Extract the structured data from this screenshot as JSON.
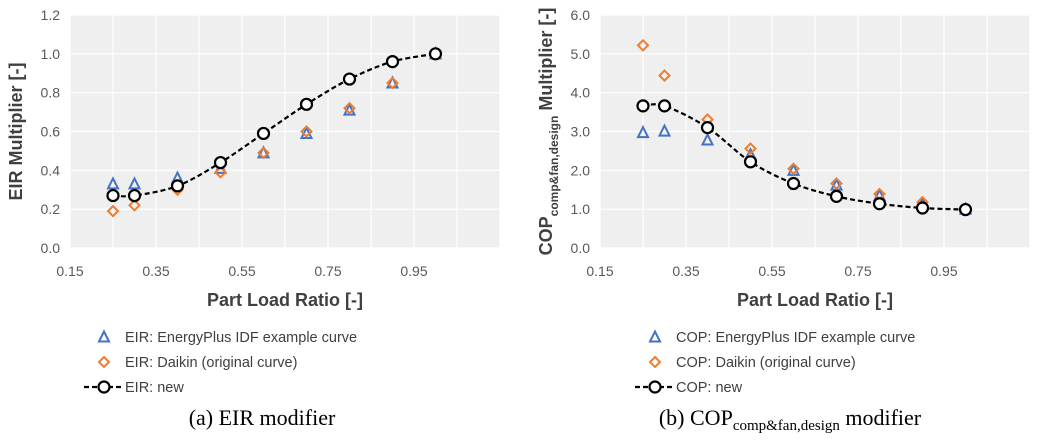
{
  "chart_data": [
    {
      "type": "scatter",
      "caption": "(a) EIR modifier",
      "xlabel": "Part Load Ratio [-]",
      "ylabel": "EIR Multiplier [-]",
      "xlim": [
        0.15,
        1.15
      ],
      "ylim": [
        0.0,
        1.2
      ],
      "xticks": [
        "0.15",
        "0.35",
        "0.55",
        "0.75",
        "0.95"
      ],
      "yticks": [
        "0.0",
        "0.2",
        "0.4",
        "0.6",
        "0.8",
        "1.0",
        "1.2"
      ],
      "grid": true,
      "legend_position": "bottom",
      "series": [
        {
          "name": "EIR: EnergyPlus IDF example curve",
          "marker": "triangle",
          "color": "#4472C4",
          "x": [
            0.25,
            0.3,
            0.4,
            0.5,
            0.6,
            0.7,
            0.8,
            0.9,
            1.0
          ],
          "y": [
            0.33,
            0.33,
            0.36,
            0.41,
            0.49,
            0.59,
            0.71,
            0.85,
            1.0
          ]
        },
        {
          "name": "EIR: Daikin (original curve)",
          "marker": "diamond",
          "color": "#ED7D31",
          "x": [
            0.25,
            0.3,
            0.4,
            0.5,
            0.6,
            0.7,
            0.8,
            0.9,
            1.0
          ],
          "y": [
            0.19,
            0.22,
            0.3,
            0.39,
            0.49,
            0.6,
            0.72,
            0.85,
            1.0
          ]
        },
        {
          "name": "EIR: new",
          "marker": "circle",
          "line": "dashed",
          "color": "#000000",
          "x": [
            0.25,
            0.3,
            0.4,
            0.5,
            0.6,
            0.7,
            0.8,
            0.9,
            1.0
          ],
          "y": [
            0.27,
            0.27,
            0.32,
            0.44,
            0.59,
            0.74,
            0.87,
            0.96,
            1.0
          ]
        }
      ]
    },
    {
      "type": "scatter",
      "caption": "(b) COP",
      "caption_sub": "comp&fan,design",
      "caption_suffix": " modifier",
      "xlabel": "Part Load Ratio [-]",
      "ylabel": "COP",
      "ylabel_sub": "comp&fan,design",
      "ylabel_suffix": " Multiplier [-]",
      "xlim": [
        0.15,
        1.15
      ],
      "ylim": [
        0.0,
        6.0
      ],
      "xticks": [
        "0.15",
        "0.35",
        "0.55",
        "0.75",
        "0.95"
      ],
      "yticks": [
        "0.0",
        "1.0",
        "2.0",
        "3.0",
        "4.0",
        "5.0",
        "6.0"
      ],
      "grid": true,
      "legend_position": "bottom",
      "series": [
        {
          "name": "COP: EnergyPlus IDF example curve",
          "marker": "triangle",
          "color": "#4472C4",
          "x": [
            0.25,
            0.3,
            0.4,
            0.5,
            0.6,
            0.7,
            0.8,
            0.9,
            1.0
          ],
          "y": [
            2.97,
            3.01,
            2.78,
            2.4,
            2.0,
            1.62,
            1.35,
            1.13,
            1.0
          ]
        },
        {
          "name": "COP: Daikin (original curve)",
          "marker": "diamond",
          "color": "#ED7D31",
          "x": [
            0.25,
            0.3,
            0.4,
            0.5,
            0.6,
            0.7,
            0.8,
            0.9,
            1.0
          ],
          "y": [
            5.22,
            4.44,
            3.31,
            2.56,
            2.04,
            1.66,
            1.39,
            1.18,
            1.0
          ]
        },
        {
          "name": "COP: new",
          "marker": "circle",
          "line": "dashed",
          "color": "#000000",
          "x": [
            0.25,
            0.3,
            0.4,
            0.5,
            0.6,
            0.7,
            0.8,
            0.9,
            1.0
          ],
          "y": [
            3.66,
            3.66,
            3.1,
            2.22,
            1.66,
            1.33,
            1.14,
            1.03,
            0.99
          ]
        }
      ]
    }
  ]
}
